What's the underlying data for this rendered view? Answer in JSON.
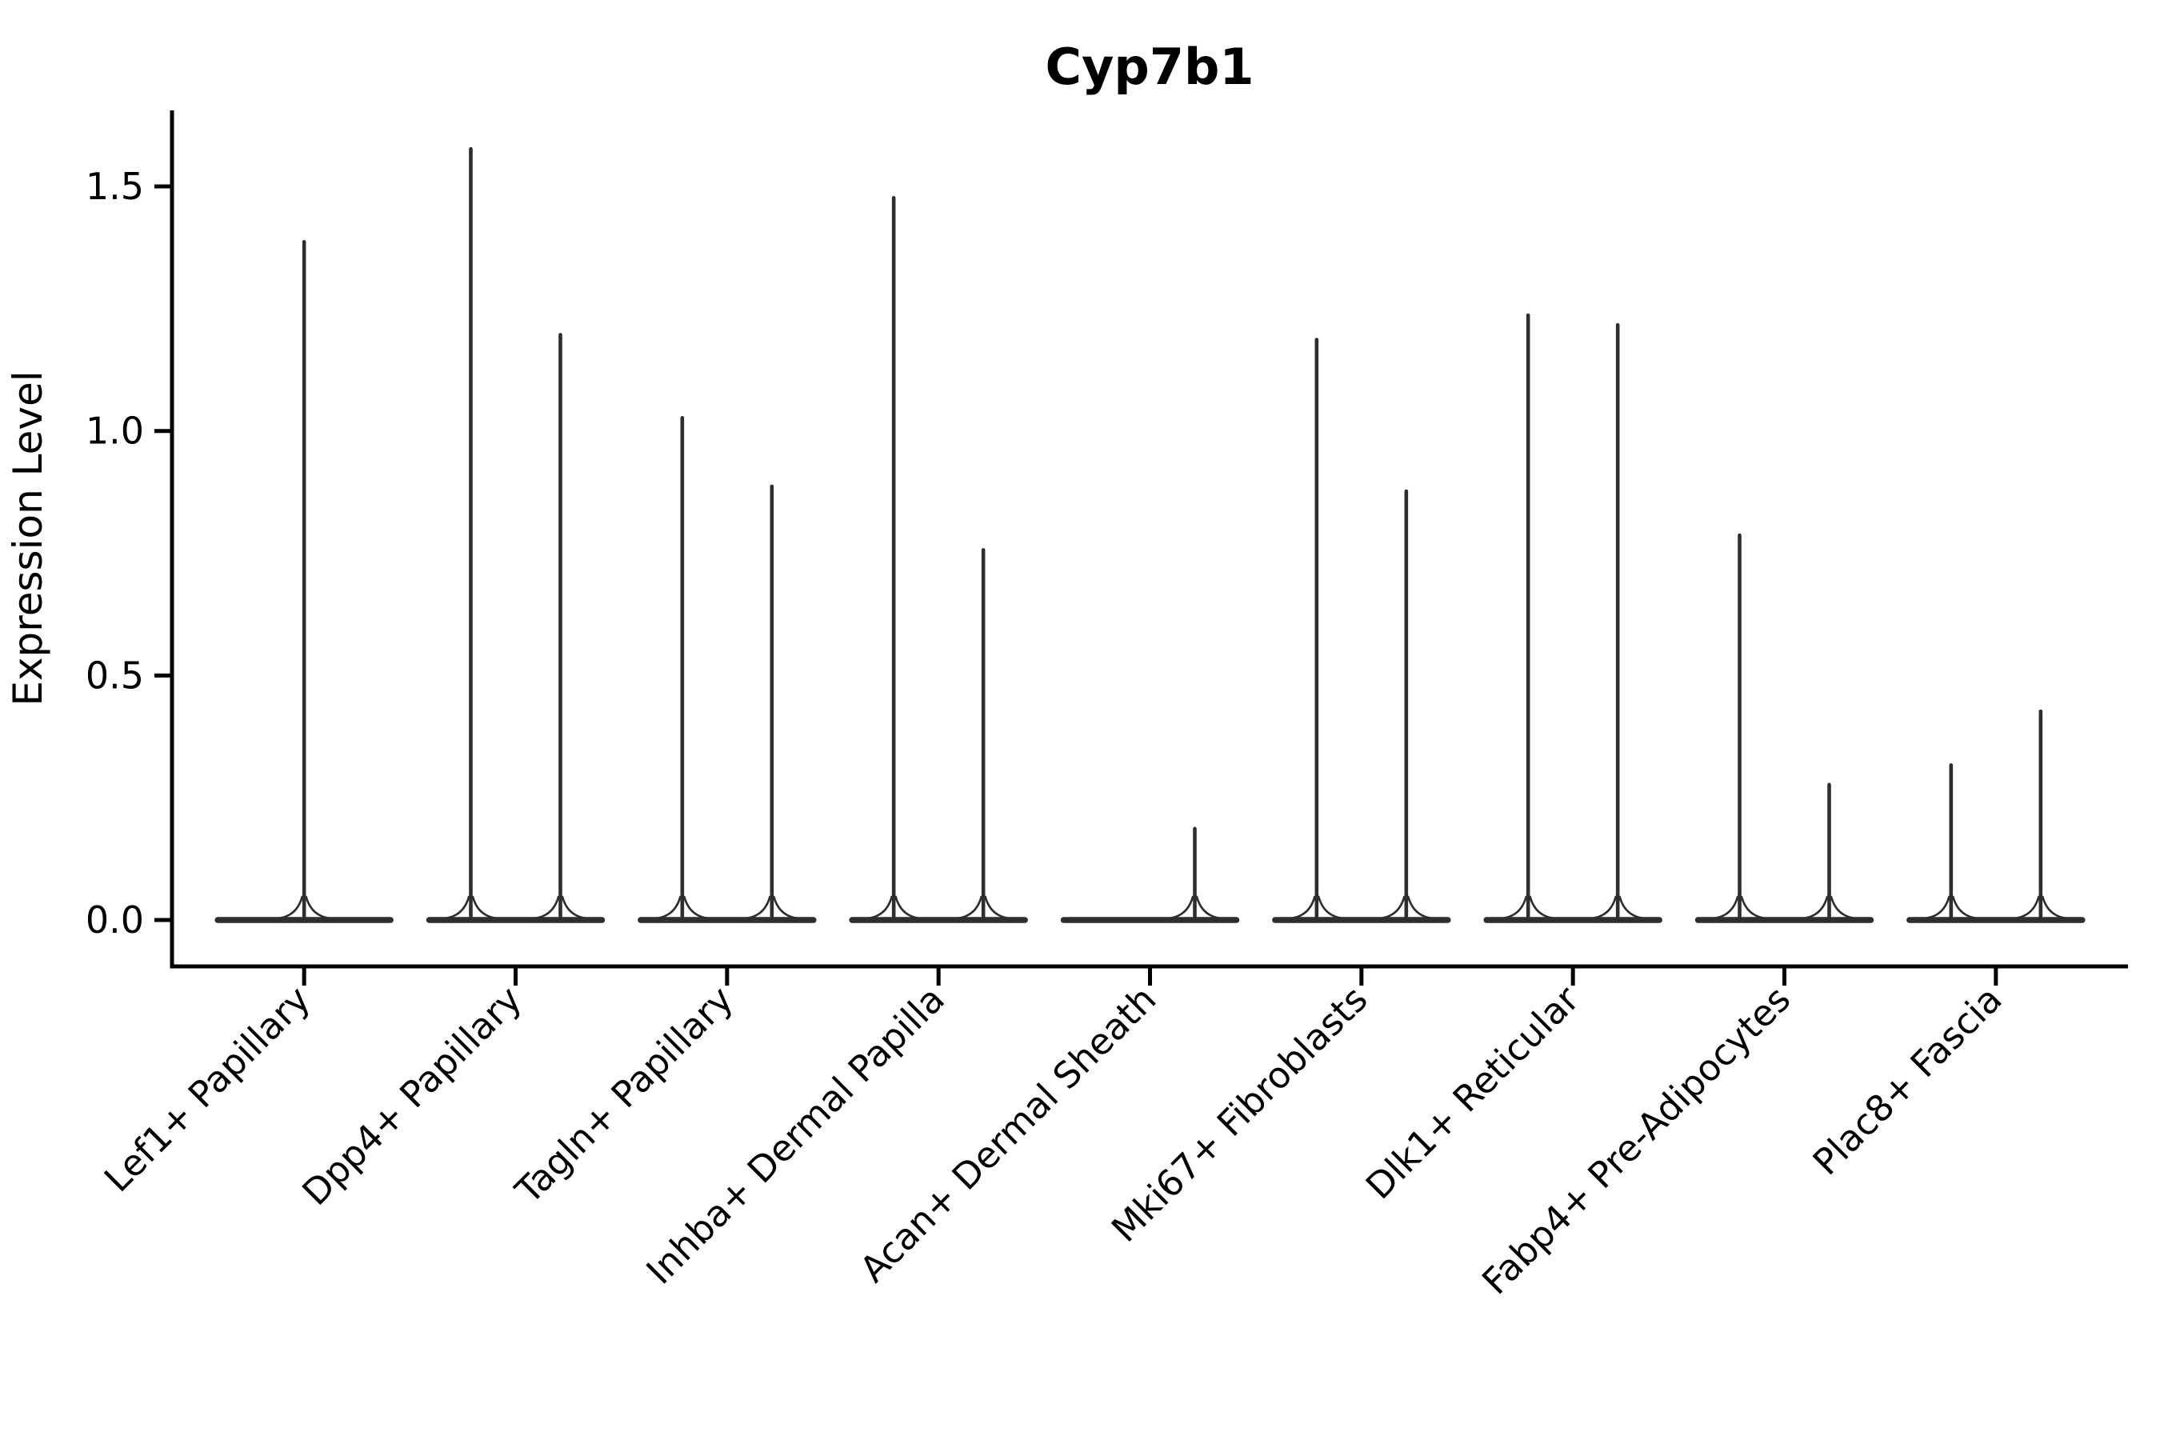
{
  "chart_data": {
    "type": "violin",
    "title": "Cyp7b1",
    "xlabel": "",
    "ylabel": "Expression Level",
    "ylim": [
      0,
      1.65
    ],
    "yticks": [
      0.0,
      0.5,
      1.0,
      1.5
    ],
    "ytick_labels": [
      "0.0",
      "0.5",
      "1.0",
      "1.5"
    ],
    "grid": false,
    "legend": "none",
    "x_tick_label_rotation_deg": 45,
    "categories": [
      "Lef1+ Papillary",
      "Dpp4+ Papillary",
      "Tagln+ Papillary",
      "Inhba+ Dermal Papilla",
      "Acan+ Dermal Sheath",
      "Mki67+ Fibroblasts",
      "Dlk1+ Reticular",
      "Fabp4+ Pre-Adipocytes",
      "Plac8+ Fascia"
    ],
    "violins": [
      {
        "category": "Lef1+ Papillary",
        "layout": "single",
        "max_expression": [
          1.39
        ]
      },
      {
        "category": "Dpp4+ Papillary",
        "layout": "pair",
        "max_expression": [
          1.58,
          1.2
        ]
      },
      {
        "category": "Tagln+ Papillary",
        "layout": "pair",
        "max_expression": [
          1.03,
          0.89
        ]
      },
      {
        "category": "Inhba+ Dermal Papilla",
        "layout": "pair",
        "max_expression": [
          1.48,
          0.76
        ]
      },
      {
        "category": "Acan+ Dermal Sheath",
        "layout": "pair",
        "max_expression": [
          0.0,
          0.19
        ]
      },
      {
        "category": "Mki67+ Fibroblasts",
        "layout": "pair",
        "max_expression": [
          1.19,
          0.88
        ]
      },
      {
        "category": "Dlk1+ Reticular",
        "layout": "pair",
        "max_expression": [
          1.24,
          1.22
        ]
      },
      {
        "category": "Fabp4+ Pre-Adipocytes",
        "layout": "pair",
        "max_expression": [
          0.79,
          0.28
        ]
      },
      {
        "category": "Plac8+ Fascia",
        "layout": "pair",
        "max_expression": [
          0.32,
          0.43
        ]
      }
    ],
    "style": {
      "violin_stroke": "#2e2e2e",
      "axis_color": "#000000",
      "background": "#ffffff",
      "note": "each violin collapses to a wide flat base at 0 with a thin spike rising to its maximum"
    }
  }
}
